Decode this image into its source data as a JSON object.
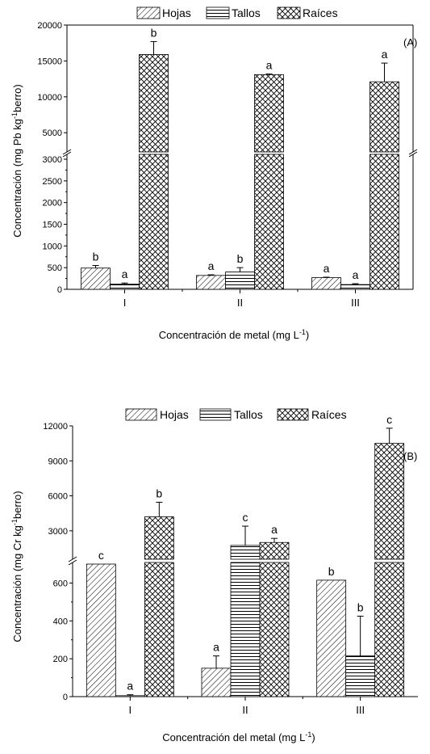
{
  "chart_data": [
    {
      "type": "bar",
      "panel_label": "(A)",
      "categories": [
        "I",
        "II",
        "III"
      ],
      "series": [
        {
          "name": "Hojas",
          "values": [
            490,
            320,
            270
          ],
          "errors": [
            60,
            15,
            10
          ],
          "letters": [
            "b",
            "a",
            "a"
          ]
        },
        {
          "name": "Tallos",
          "values": [
            120,
            400,
            110
          ],
          "errors": [
            25,
            100,
            20
          ],
          "letters": [
            "a",
            "b",
            "a"
          ]
        },
        {
          "name": "Raíces",
          "values": [
            15900,
            13100,
            12100
          ],
          "errors": [
            1800,
            80,
            2600
          ],
          "letters": [
            "b",
            "a",
            "a"
          ]
        }
      ],
      "xlabel": "Concentración de metal (mg L<sup>-1</sup>)",
      "xlabel_text": "Concentración de metal (mg L",
      "xlabel_sup": "-1",
      "xlabel_tail": ")",
      "ylabel_pre": "Concentración  (mg Pb kg",
      "ylabel_sup": "-1",
      "ylabel_post": "berro)",
      "y_break": {
        "lower": [
          0,
          3000
        ],
        "upper": [
          3000,
          20000
        ]
      },
      "yticks_lower": [
        0,
        500,
        1000,
        1500,
        2000,
        2500,
        3000
      ],
      "yticks_upper": [
        5000,
        10000,
        15000,
        20000
      ],
      "legend_position": "top"
    },
    {
      "type": "bar",
      "panel_label": "(B)",
      "categories": [
        "I",
        "II",
        "III"
      ],
      "series": [
        {
          "name": "Hojas",
          "values": [
            700,
            150,
            615
          ],
          "errors": [
            0,
            65,
            0
          ],
          "letters": [
            "c",
            "a",
            "b"
          ]
        },
        {
          "name": "Tallos",
          "values": [
            5,
            1750,
            215
          ],
          "errors": [
            5,
            1650,
            210
          ],
          "letters": [
            "a",
            "c",
            "b"
          ]
        },
        {
          "name": "Raíces",
          "values": [
            4200,
            2000,
            10500
          ],
          "errors": [
            1250,
            350,
            1300
          ],
          "letters": [
            "b",
            "a",
            "c"
          ]
        }
      ],
      "xlabel_text": "Concentración del metal (mg L",
      "xlabel_sup": "-1",
      "xlabel_tail": ")",
      "ylabel_pre": "Concentración  (mg Cr kg",
      "ylabel_sup": "-1",
      "ylabel_post": "berro)",
      "y_break": {
        "lower": [
          0,
          700
        ],
        "upper": [
          700,
          12000
        ]
      },
      "yticks_lower": [
        0,
        200,
        400,
        600
      ],
      "yticks_upper": [
        3000,
        6000,
        9000,
        12000
      ],
      "legend_position": "top"
    }
  ]
}
